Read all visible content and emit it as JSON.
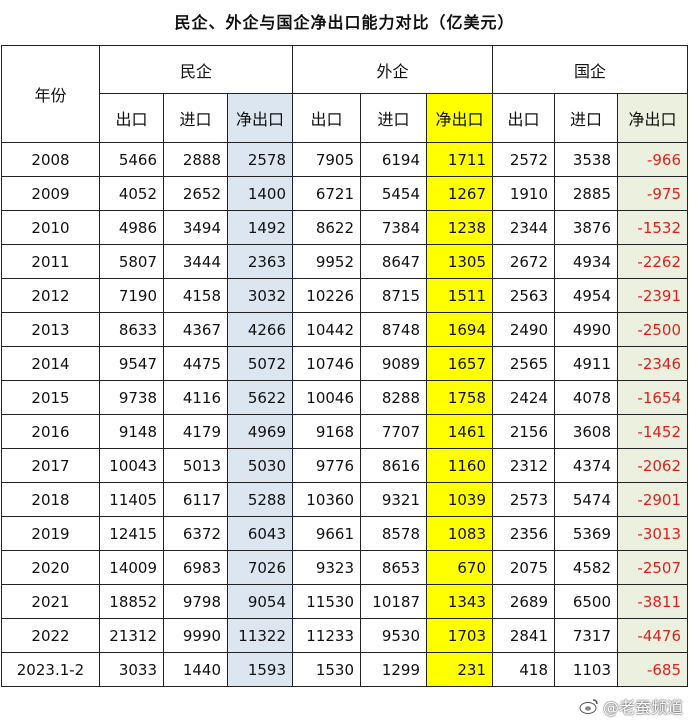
{
  "title": "民企、外企与国企净出口能力对比（亿美元）",
  "headers": {
    "year": "年份",
    "groups": [
      "民企",
      "外企",
      "国企"
    ],
    "sub": [
      "出口",
      "进口",
      "净出口"
    ]
  },
  "rows": [
    {
      "year": "2008",
      "p": [
        "5466",
        "2888",
        "2578"
      ],
      "f": [
        "7905",
        "6194",
        "1711"
      ],
      "s": [
        "2572",
        "3538",
        "-966"
      ]
    },
    {
      "year": "2009",
      "p": [
        "4052",
        "2652",
        "1400"
      ],
      "f": [
        "6721",
        "5454",
        "1267"
      ],
      "s": [
        "1910",
        "2885",
        "-975"
      ]
    },
    {
      "year": "2010",
      "p": [
        "4986",
        "3494",
        "1492"
      ],
      "f": [
        "8622",
        "7384",
        "1238"
      ],
      "s": [
        "2344",
        "3876",
        "-1532"
      ]
    },
    {
      "year": "2011",
      "p": [
        "5807",
        "3444",
        "2363"
      ],
      "f": [
        "9952",
        "8647",
        "1305"
      ],
      "s": [
        "2672",
        "4934",
        "-2262"
      ]
    },
    {
      "year": "2012",
      "p": [
        "7190",
        "4158",
        "3032"
      ],
      "f": [
        "10226",
        "8715",
        "1511"
      ],
      "s": [
        "2563",
        "4954",
        "-2391"
      ]
    },
    {
      "year": "2013",
      "p": [
        "8633",
        "4367",
        "4266"
      ],
      "f": [
        "10442",
        "8748",
        "1694"
      ],
      "s": [
        "2490",
        "4990",
        "-2500"
      ]
    },
    {
      "year": "2014",
      "p": [
        "9547",
        "4475",
        "5072"
      ],
      "f": [
        "10746",
        "9089",
        "1657"
      ],
      "s": [
        "2565",
        "4911",
        "-2346"
      ]
    },
    {
      "year": "2015",
      "p": [
        "9738",
        "4116",
        "5622"
      ],
      "f": [
        "10046",
        "8288",
        "1758"
      ],
      "s": [
        "2424",
        "4078",
        "-1654"
      ]
    },
    {
      "year": "2016",
      "p": [
        "9148",
        "4179",
        "4969"
      ],
      "f": [
        "9168",
        "7707",
        "1461"
      ],
      "s": [
        "2156",
        "3608",
        "-1452"
      ]
    },
    {
      "year": "2017",
      "p": [
        "10043",
        "5013",
        "5030"
      ],
      "f": [
        "9776",
        "8616",
        "1160"
      ],
      "s": [
        "2312",
        "4374",
        "-2062"
      ]
    },
    {
      "year": "2018",
      "p": [
        "11405",
        "6117",
        "5288"
      ],
      "f": [
        "10360",
        "9321",
        "1039"
      ],
      "s": [
        "2573",
        "5474",
        "-2901"
      ]
    },
    {
      "year": "2019",
      "p": [
        "12415",
        "6372",
        "6043"
      ],
      "f": [
        "9661",
        "8578",
        "1083"
      ],
      "s": [
        "2356",
        "5369",
        "-3013"
      ]
    },
    {
      "year": "2020",
      "p": [
        "14009",
        "6983",
        "7026"
      ],
      "f": [
        "9323",
        "8653",
        "670"
      ],
      "s": [
        "2075",
        "4582",
        "-2507"
      ]
    },
    {
      "year": "2021",
      "p": [
        "18852",
        "9798",
        "9054"
      ],
      "f": [
        "11530",
        "10187",
        "1343"
      ],
      "s": [
        "2689",
        "6500",
        "-3811"
      ]
    },
    {
      "year": "2022",
      "p": [
        "21312",
        "9990",
        "11322"
      ],
      "f": [
        "11233",
        "9530",
        "1703"
      ],
      "s": [
        "2841",
        "7317",
        "-4476"
      ]
    },
    {
      "year": "2023.1-2",
      "p": [
        "3033",
        "1440",
        "1593"
      ],
      "f": [
        "1530",
        "1299",
        "231"
      ],
      "s": [
        "418",
        "1103",
        "-685"
      ]
    }
  ],
  "colors": {
    "private_net": "#dce6f1",
    "foreign_net": "#ffff00",
    "state_net": "#ebf1de",
    "negative": "#e02020"
  },
  "watermark": "@老蚕频道"
}
